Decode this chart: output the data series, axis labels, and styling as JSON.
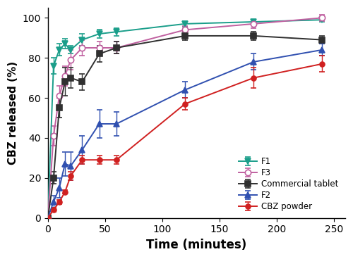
{
  "title": "",
  "xlabel": "Time (minutes)",
  "ylabel": "CBZ released (%)",
  "xlim": [
    0,
    260
  ],
  "ylim": [
    0,
    105
  ],
  "xticks": [
    0,
    50,
    100,
    150,
    200,
    250
  ],
  "yticks": [
    0,
    20,
    40,
    60,
    80,
    100
  ],
  "series": {
    "F1": {
      "x": [
        0,
        5,
        10,
        15,
        20,
        30,
        45,
        60,
        120,
        180,
        240
      ],
      "y": [
        0,
        76,
        84,
        87,
        84,
        89,
        92,
        93,
        97,
        98,
        99
      ],
      "yerr": [
        0,
        4,
        3,
        2.5,
        2,
        3,
        2,
        2,
        1.5,
        1,
        1
      ],
      "color": "#1a9e8a",
      "marker": "v",
      "markersize": 6,
      "linewidth": 1.4
    },
    "F3": {
      "x": [
        0,
        5,
        10,
        15,
        20,
        30,
        45,
        60,
        120,
        180,
        240
      ],
      "y": [
        0,
        41,
        61,
        71,
        79,
        85,
        85,
        85,
        94,
        97,
        100
      ],
      "yerr": [
        0,
        5,
        5,
        5,
        5,
        4,
        3,
        3,
        2,
        2,
        1.5
      ],
      "color": "#c060a0",
      "marker": "o",
      "markersize": 6,
      "linewidth": 1.4,
      "open": true
    },
    "Commercial tablet": {
      "x": [
        0,
        5,
        10,
        15,
        20,
        30,
        45,
        60,
        120,
        180,
        240
      ],
      "y": [
        0,
        20,
        55,
        68,
        70,
        68,
        82,
        85,
        91,
        91,
        89
      ],
      "yerr": [
        0,
        3,
        5,
        7,
        5,
        4,
        4,
        3,
        2,
        2,
        2
      ],
      "color": "#303030",
      "marker": "s",
      "markersize": 6,
      "linewidth": 1.4
    },
    "F2": {
      "x": [
        0,
        5,
        10,
        15,
        20,
        30,
        45,
        60,
        120,
        180,
        240
      ],
      "y": [
        0,
        8,
        15,
        27,
        26,
        34,
        47,
        47,
        64,
        78,
        84
      ],
      "yerr": [
        0,
        3,
        5,
        6,
        7,
        7,
        7,
        6,
        4,
        4,
        3
      ],
      "color": "#3050b0",
      "marker": "^",
      "markersize": 6,
      "linewidth": 1.4
    },
    "CBZ powder": {
      "x": [
        0,
        5,
        10,
        15,
        20,
        30,
        45,
        60,
        120,
        180,
        240
      ],
      "y": [
        0,
        4,
        8,
        13,
        21,
        29,
        29,
        29,
        57,
        70,
        77
      ],
      "yerr": [
        0,
        1,
        1,
        1,
        2,
        2,
        2,
        2,
        3,
        5,
        4
      ],
      "color": "#d02020",
      "marker": "o",
      "markersize": 5,
      "linewidth": 1.4
    }
  },
  "legend_order": [
    "F1",
    "F3",
    "Commercial tablet",
    "F2",
    "CBZ powder"
  ],
  "figsize": [
    5.0,
    3.68
  ],
  "dpi": 100
}
